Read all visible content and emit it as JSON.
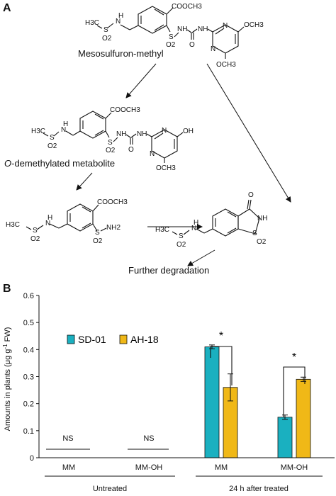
{
  "panel_a": {
    "label": "A",
    "mesosulfuron": {
      "name": "Mesosulfuron-methyl",
      "ester": "COOCH3",
      "ms_left": "H3C",
      "ms_s": "S",
      "ms_o2": "O2",
      "nh": "N",
      "nh_h": "H",
      "sulf_s": "S",
      "sulf_o2": "O2",
      "urea_nh1": "NH",
      "urea_o": "O",
      "urea_nh2": "NH",
      "ring_n1": "N",
      "ring_n2": "N",
      "och3_top": "OCH3",
      "och3_bottom": "OCH3"
    },
    "odemethylated": {
      "name_italic": "O",
      "name_rest": "-demethylated metabolite",
      "ester": "COOCH3",
      "ms_left": "H3C",
      "ms_s": "S",
      "ms_o2": "O2",
      "nh": "N",
      "nh_h": "H",
      "sulf_s": "S",
      "sulf_o2": "O2",
      "urea_nh1": "NH",
      "urea_o": "O",
      "urea_nh2": "NH",
      "ring_n1": "N",
      "ring_n2": "N",
      "oh": "OH",
      "och3": "OCH3"
    },
    "sulfonamide": {
      "ester": "COOCH3",
      "ms_left": "H3C",
      "ms_s": "S",
      "ms_o2": "O2",
      "nh": "N",
      "nh_h": "H",
      "s": "S",
      "nh2": "NH2",
      "o2": "O2"
    },
    "saccharin": {
      "o": "O",
      "nh": "NH",
      "s": "S",
      "o2": "O2",
      "ms_left": "H3C",
      "ms_s": "S",
      "ms_o2": "O2",
      "nh_n": "N",
      "nh_h": "H"
    },
    "further": "Further degradation"
  },
  "panel_b": {
    "label": "B",
    "ns_labels": [
      "NS",
      "NS"
    ],
    "significance": [
      "*",
      "*"
    ],
    "group_labels": [
      "Untreated",
      "24 h after treated"
    ],
    "ylabel_main": "Amounts in plants (μg g",
    "ylabel_sup": "-1",
    "ylabel_end": " FW)"
  },
  "chart_data": {
    "type": "bar",
    "categories": [
      "MM",
      "MM-OH",
      "MM",
      "MM-OH"
    ],
    "groups": [
      "Untreated",
      "Untreated",
      "24 h after treated",
      "24 h after treated"
    ],
    "series": [
      {
        "name": "SD-01",
        "color": "#1ab0c0",
        "values": [
          0,
          0,
          0.41,
          0.15
        ],
        "errors": [
          0,
          0,
          0.007,
          0.008
        ]
      },
      {
        "name": "AH-18",
        "color": "#f0b817",
        "values": [
          0,
          0,
          0.26,
          0.29
        ],
        "errors": [
          0,
          0,
          0.05,
          0.008
        ]
      }
    ],
    "ylabel": "Amounts in plants (μg g-1 FW)",
    "ylim": [
      0,
      0.6
    ],
    "yticks": [
      0,
      0.1,
      0.2,
      0.3,
      0.4,
      0.5,
      0.6
    ],
    "yticklabels": [
      "0",
      "0.1",
      "0.2",
      "0.3",
      "0.4",
      "0.5",
      "0.6"
    ],
    "legend": "top-left",
    "grid": false
  }
}
